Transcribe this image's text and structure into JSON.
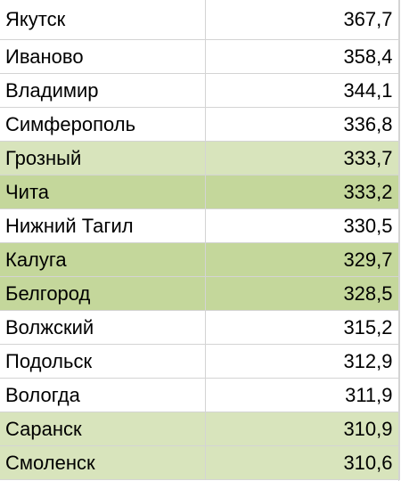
{
  "rows": [
    {
      "city": "Якутск",
      "value": "367,7",
      "fill": "#ffffff"
    },
    {
      "city": "Иваново",
      "value": "358,4",
      "fill": "#ffffff"
    },
    {
      "city": "Владимир",
      "value": "344,1",
      "fill": "#ffffff"
    },
    {
      "city": "Симферополь",
      "value": "336,8",
      "fill": "#ffffff"
    },
    {
      "city": "Грозный",
      "value": "333,7",
      "fill": "#d8e4bc"
    },
    {
      "city": "Чита",
      "value": "333,2",
      "fill": "#c4d79b"
    },
    {
      "city": "Нижний Тагил",
      "value": "330,5",
      "fill": "#ffffff"
    },
    {
      "city": "Калуга",
      "value": "329,7",
      "fill": "#c4d79b"
    },
    {
      "city": "Белгород",
      "value": "328,5",
      "fill": "#c4d79b"
    },
    {
      "city": "Волжский",
      "value": "315,2",
      "fill": "#ffffff"
    },
    {
      "city": "Подольск",
      "value": "312,9",
      "fill": "#ffffff"
    },
    {
      "city": "Вологда",
      "value": "311,9",
      "fill": "#ffffff"
    },
    {
      "city": "Саранск",
      "value": "310,9",
      "fill": "#d8e4bc"
    },
    {
      "city": "Смоленск",
      "value": "310,6",
      "fill": "#d8e4bc"
    }
  ]
}
